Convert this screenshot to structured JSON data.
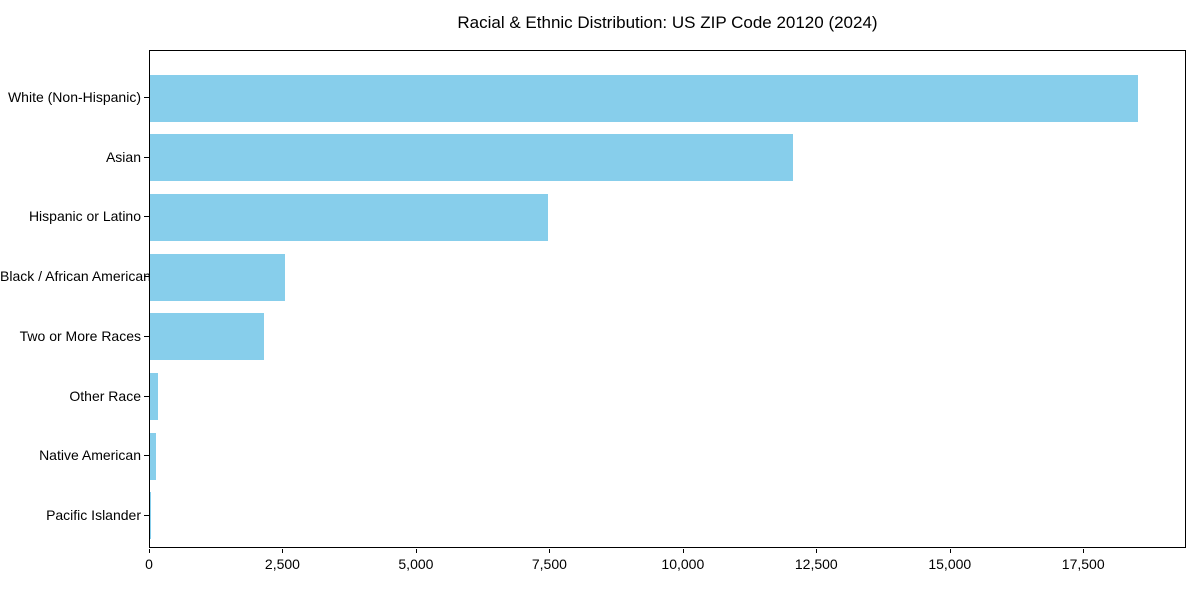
{
  "title": "Racial & Ethnic Distribution: US ZIP Code 20120 (2024)",
  "chart_data": {
    "type": "bar",
    "orientation": "horizontal",
    "title": "Racial & Ethnic Distribution: US ZIP Code 20120 (2024)",
    "categories": [
      "White (Non-Hispanic)",
      "Asian",
      "Hispanic or Latino",
      "Black / African American",
      "Two or More Races",
      "Other Race",
      "Native American",
      "Pacific Islander"
    ],
    "values": [
      18500,
      12050,
      7450,
      2520,
      2130,
      150,
      105,
      15
    ],
    "xlabel": "",
    "ylabel": "",
    "xlim": [
      0,
      19425
    ],
    "x_ticks": [
      0,
      2500,
      5000,
      7500,
      10000,
      12500,
      15000,
      17500
    ],
    "x_tick_labels": [
      "0",
      "2,500",
      "5,000",
      "7,500",
      "10,000",
      "12,500",
      "15,000",
      "17,500"
    ],
    "bar_color": "#87CEEB",
    "grid": false,
    "legend": null
  }
}
